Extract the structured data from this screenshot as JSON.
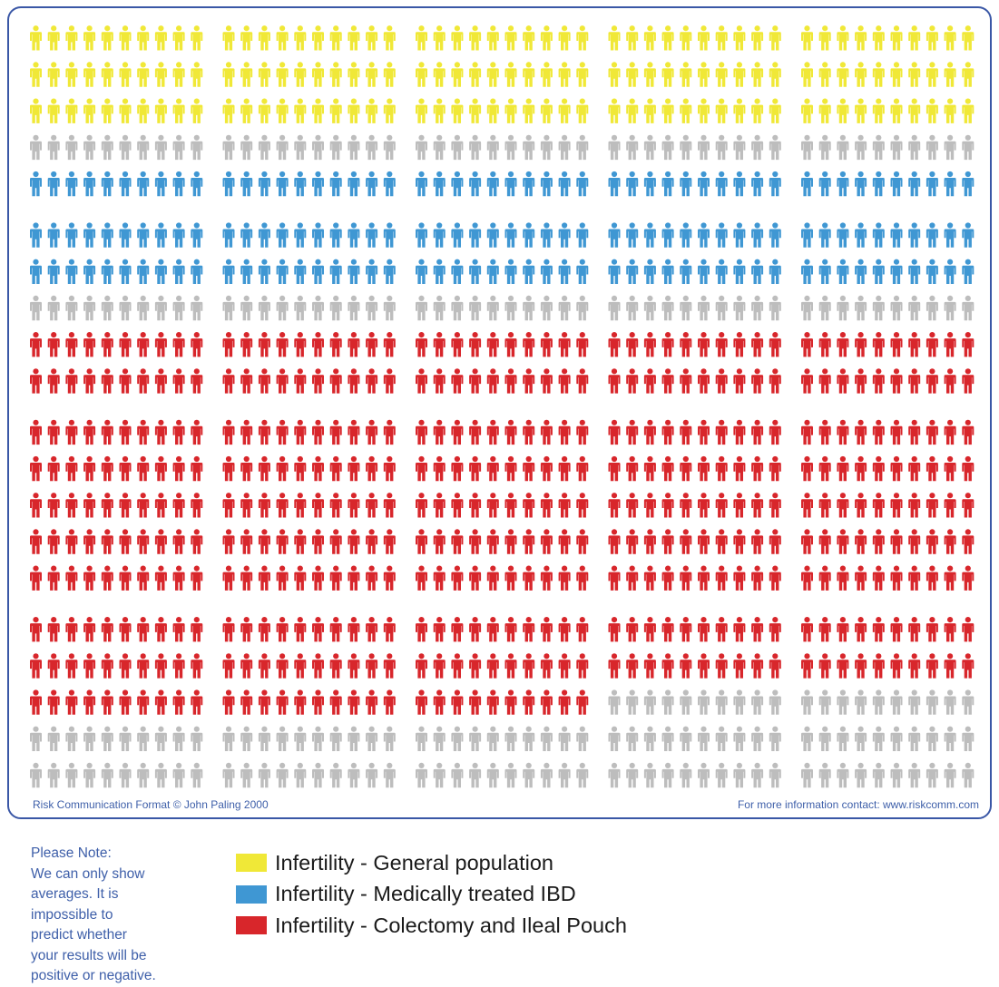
{
  "chart_data": {
    "type": "pictograph",
    "total_figures": 1000,
    "blocks": {
      "rows": 4,
      "cols": 5
    },
    "block_figures": {
      "rows": 5,
      "cols": 10
    },
    "figure_row_colors": [
      [
        "yellow",
        "yellow",
        "yellow",
        "gray",
        "blue"
      ],
      [
        "blue",
        "blue",
        "gray",
        "red",
        "red"
      ],
      [
        "red",
        "red",
        "red",
        "red",
        "red"
      ],
      [
        "red",
        "red",
        "red",
        "gray",
        "gray"
      ]
    ],
    "block_row3_overrides": [
      {
        "block_col": 3,
        "row": 2,
        "color": "gray"
      },
      {
        "block_col": 4,
        "row": 2,
        "color": "gray"
      }
    ],
    "colors": {
      "yellow": "#f0e837",
      "blue": "#3f97d3",
      "red": "#d8262b",
      "gray": "#bdbdbd"
    },
    "series": [
      {
        "name": "Infertility - General population",
        "color_key": "yellow",
        "count": 150
      },
      {
        "name": "Infertility - Medically treated IBD",
        "color_key": "blue",
        "count": 150
      },
      {
        "name": "Infertility - Colectomy and Ileal Pouch",
        "color_key": "red",
        "count": 480
      }
    ]
  },
  "credit_left": "Risk Communication Format © John Paling 2000",
  "credit_right": "For more information contact: www.riskcomm.com",
  "note_lines": [
    "Please Note:",
    "We can only show",
    "averages.  It is",
    "impossible to",
    "predict whether",
    "your results will be",
    "positive or negative."
  ],
  "legend": [
    {
      "label": "Infertility - General population",
      "color": "#f0e837"
    },
    {
      "label": "Infertility - Medically treated IBD",
      "color": "#3f97d3"
    },
    {
      "label": "Infertility - Colectomy and Ileal Pouch",
      "color": "#d8262b"
    }
  ]
}
